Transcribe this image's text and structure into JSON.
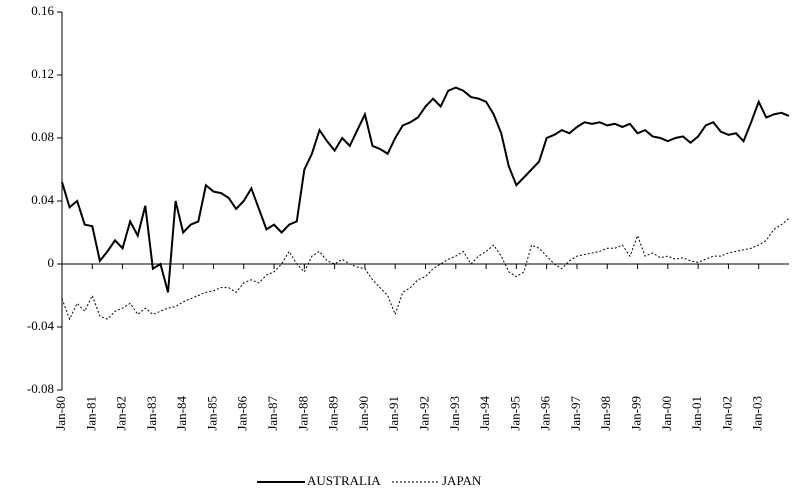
{
  "chart_data": {
    "type": "line",
    "categories": [
      "Jan-80",
      null,
      null,
      null,
      "Jan-81",
      null,
      null,
      null,
      "Jan-82",
      null,
      null,
      null,
      "Jan-83",
      null,
      null,
      null,
      "Jan-84",
      null,
      null,
      null,
      "Jan-85",
      null,
      null,
      null,
      "Jan-86",
      null,
      null,
      null,
      "Jan-87",
      null,
      null,
      null,
      "Jan-88",
      null,
      null,
      null,
      "Jan-89",
      null,
      null,
      null,
      "Jan-90",
      null,
      null,
      null,
      "Jan-91",
      null,
      null,
      null,
      "Jan-92",
      null,
      null,
      null,
      "Jan-93",
      null,
      null,
      null,
      "Jan-94",
      null,
      null,
      null,
      "Jan-95",
      null,
      null,
      null,
      "Jan-96",
      null,
      null,
      null,
      "Jan-97",
      null,
      null,
      null,
      "Jan-98",
      null,
      null,
      null,
      "Jan-99",
      null,
      null,
      null,
      "Jan-00",
      null,
      null,
      null,
      "Jan-01",
      null,
      null,
      null,
      "Jan-02",
      null,
      null,
      null,
      "Jan-03",
      null,
      null,
      null,
      null
    ],
    "series": [
      {
        "name": "AUSTRALIA",
        "color": "#000000",
        "dash": "solid",
        "values": [
          0.052,
          0.036,
          0.04,
          0.025,
          0.024,
          0.002,
          0.008,
          0.015,
          0.01,
          0.027,
          0.018,
          0.037,
          -0.003,
          0.0,
          -0.018,
          0.04,
          0.02,
          0.025,
          0.027,
          0.05,
          0.046,
          0.045,
          0.042,
          0.035,
          0.04,
          0.048,
          0.035,
          0.022,
          0.025,
          0.02,
          0.025,
          0.027,
          0.06,
          0.07,
          0.085,
          0.078,
          0.072,
          0.08,
          0.075,
          0.085,
          0.095,
          0.075,
          0.073,
          0.07,
          0.08,
          0.088,
          0.09,
          0.093,
          0.1,
          0.105,
          0.1,
          0.11,
          0.112,
          0.11,
          0.106,
          0.105,
          0.103,
          0.095,
          0.083,
          0.062,
          0.05,
          0.055,
          0.06,
          0.065,
          0.08,
          0.082,
          0.085,
          0.083,
          0.087,
          0.09,
          0.089,
          0.09,
          0.088,
          0.089,
          0.087,
          0.089,
          0.083,
          0.085,
          0.081,
          0.08,
          0.078,
          0.08,
          0.081,
          0.077,
          0.081,
          0.088,
          0.09,
          0.084,
          0.082,
          0.083,
          0.078,
          0.09,
          0.103,
          0.093,
          0.095,
          0.096,
          0.094
        ]
      },
      {
        "name": "JAPAN",
        "color": "#000000",
        "dash": "dotted",
        "values": [
          -0.022,
          -0.035,
          -0.025,
          -0.03,
          -0.02,
          -0.033,
          -0.035,
          -0.03,
          -0.028,
          -0.025,
          -0.032,
          -0.028,
          -0.032,
          -0.03,
          -0.028,
          -0.027,
          -0.024,
          -0.022,
          -0.02,
          -0.018,
          -0.017,
          -0.015,
          -0.015,
          -0.018,
          -0.012,
          -0.01,
          -0.012,
          -0.007,
          -0.005,
          0.0,
          0.008,
          0.0,
          -0.005,
          0.005,
          0.008,
          0.002,
          0.0,
          0.003,
          0.0,
          -0.002,
          -0.003,
          -0.01,
          -0.015,
          -0.02,
          -0.032,
          -0.018,
          -0.015,
          -0.01,
          -0.008,
          -0.003,
          0.0,
          0.003,
          0.005,
          0.008,
          0.0,
          0.005,
          0.008,
          0.012,
          0.005,
          -0.005,
          -0.008,
          -0.005,
          0.012,
          0.01,
          0.005,
          0.0,
          -0.003,
          0.002,
          0.005,
          0.006,
          0.007,
          0.008,
          0.01,
          0.01,
          0.012,
          0.005,
          0.018,
          0.005,
          0.007,
          0.004,
          0.005,
          0.003,
          0.004,
          0.002,
          0.001,
          0.003,
          0.005,
          0.005,
          0.007,
          0.008,
          0.009,
          0.01,
          0.012,
          0.015,
          0.022,
          0.025,
          0.029
        ]
      }
    ],
    "ylim": [
      -0.08,
      0.16
    ],
    "yticks": [
      -0.08,
      -0.04,
      0,
      0.04,
      0.08,
      0.12,
      0.16
    ],
    "grid": false,
    "legend": "bottom"
  }
}
